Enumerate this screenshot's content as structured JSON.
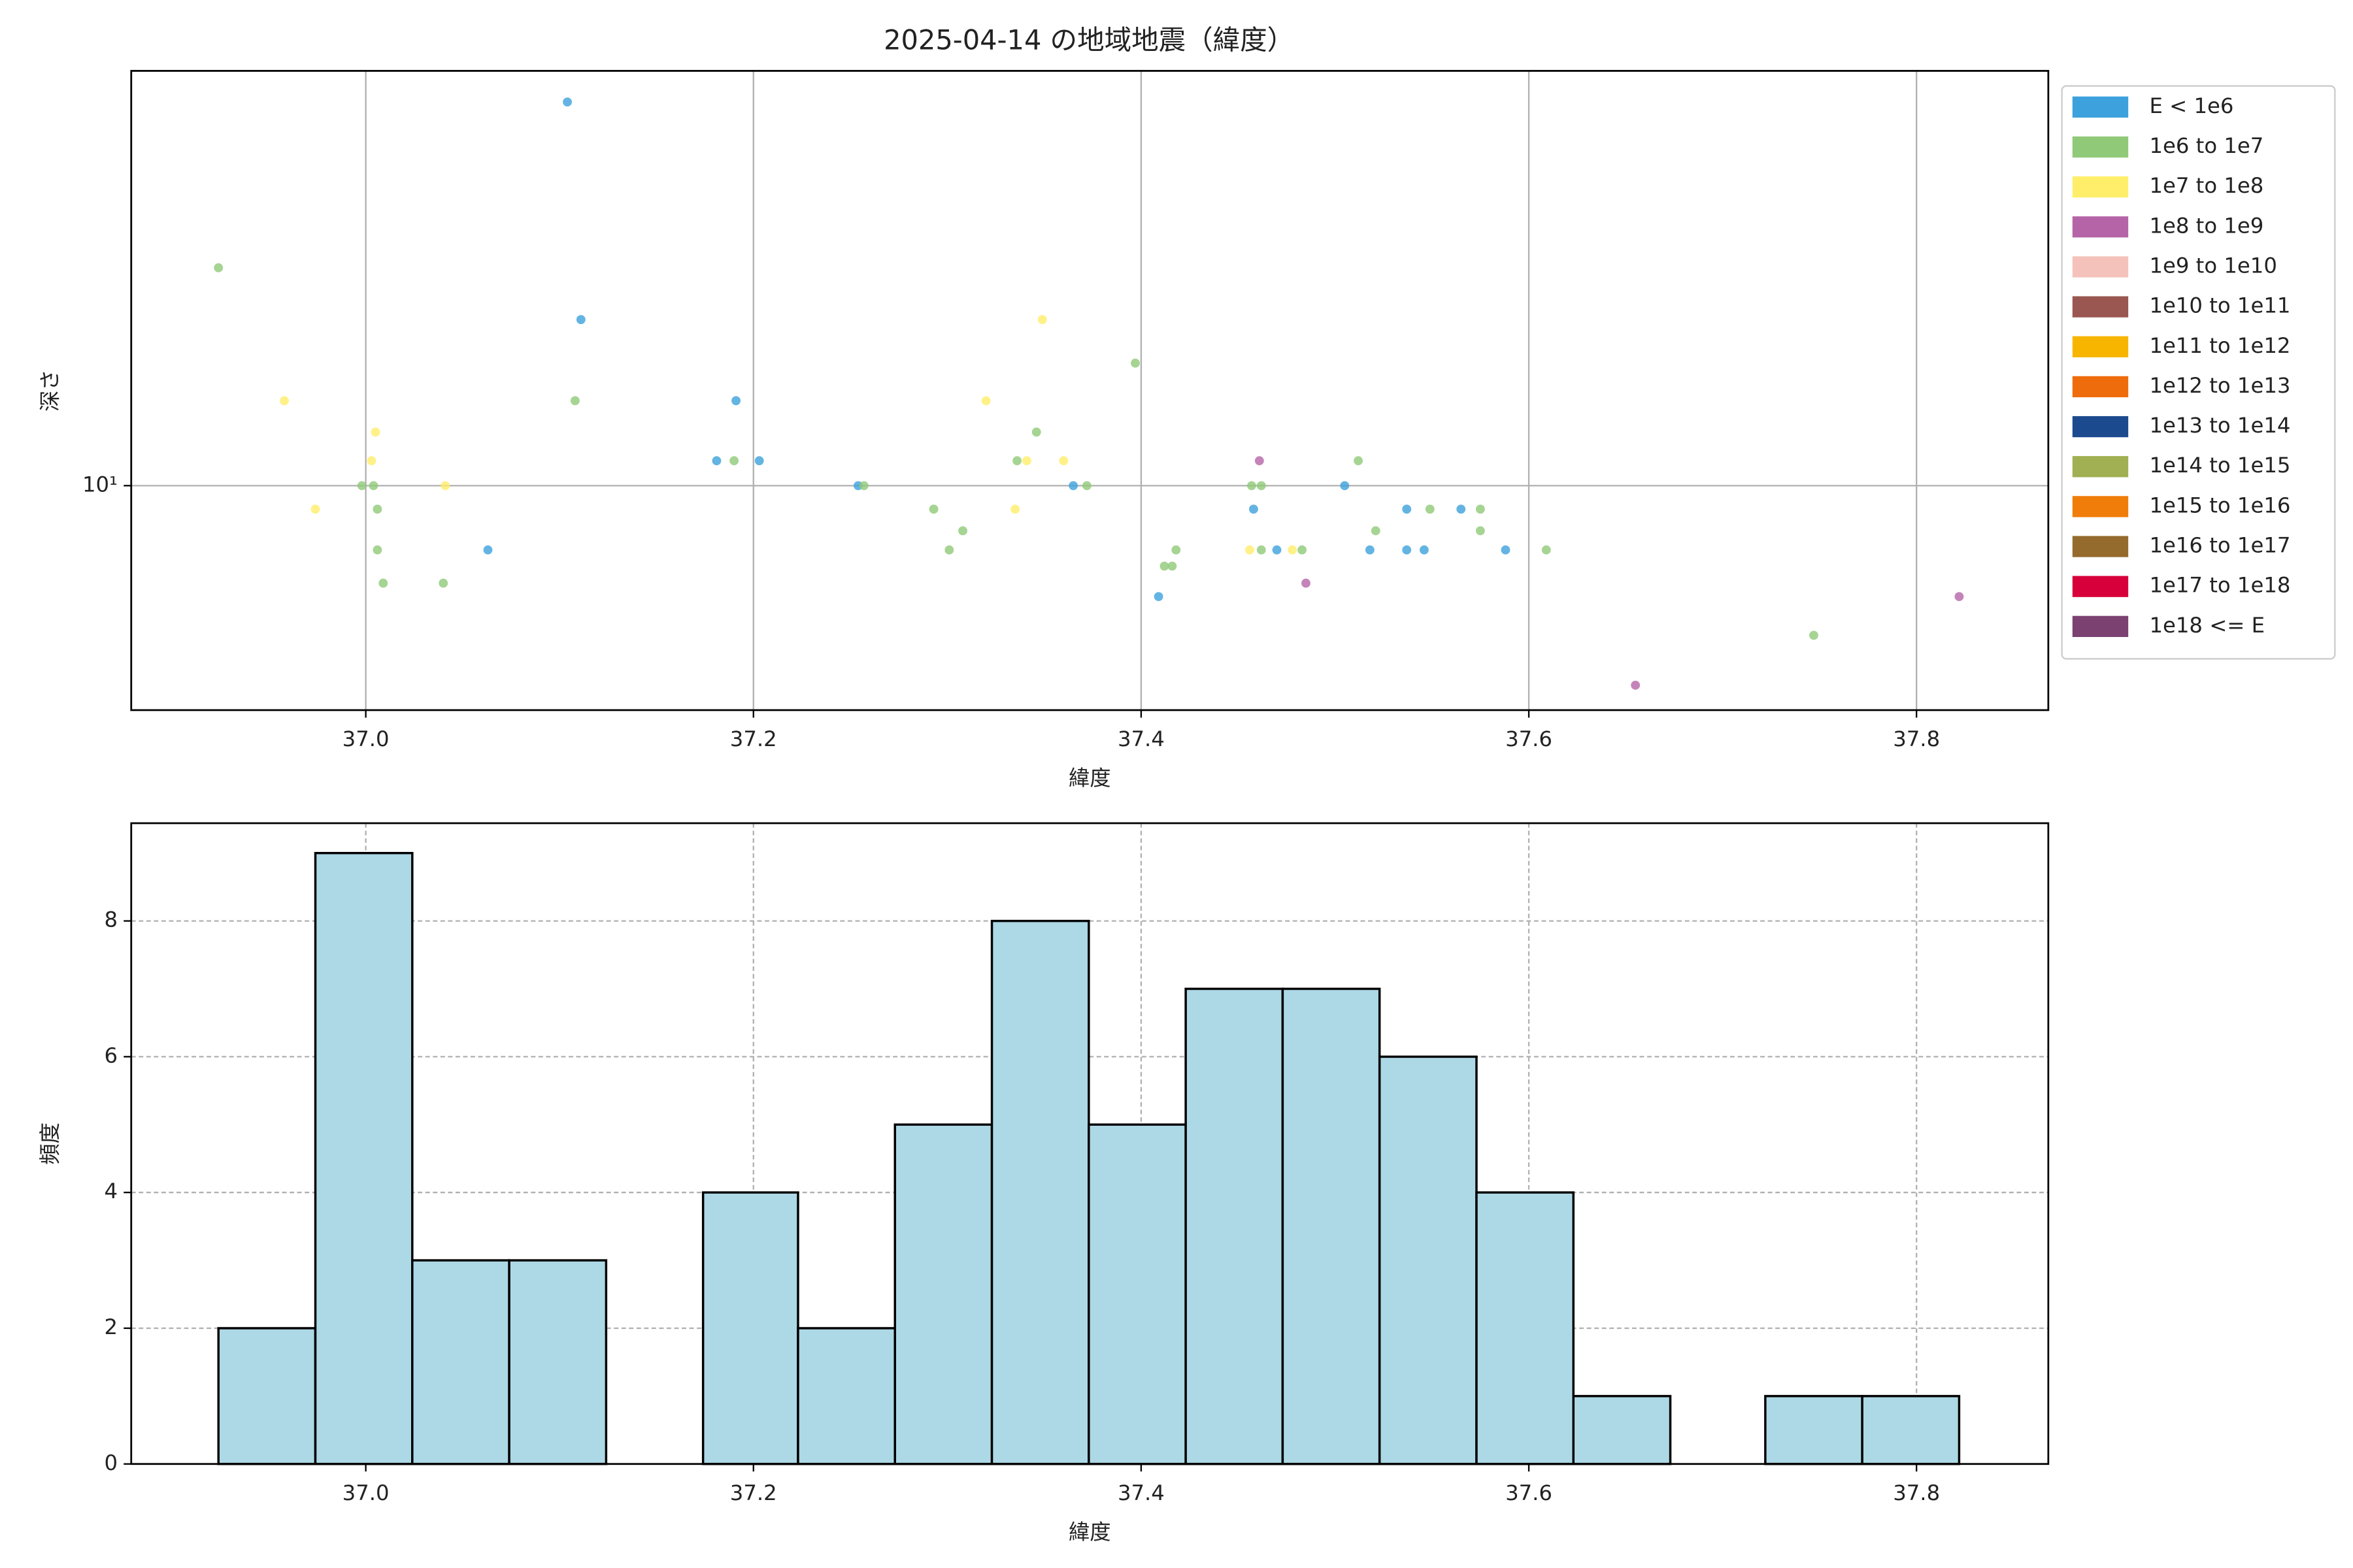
{
  "chart_data": [
    {
      "type": "scatter",
      "title": "2025-04-14 の地域地震（緯度）",
      "x_label": "緯度",
      "y_label": "深さ",
      "xlim": [
        36.879,
        37.868
      ],
      "ylim": [
        5,
        36
      ],
      "ylog": true,
      "grid": true,
      "xticks": [
        {
          "value": 37.0,
          "label": "37.0"
        },
        {
          "value": 37.2,
          "label": "37.2"
        },
        {
          "value": 37.4,
          "label": "37.4"
        },
        {
          "value": 37.6,
          "label": "37.6"
        },
        {
          "value": 37.8,
          "label": "37.8"
        }
      ],
      "yticks": [
        {
          "value": 10,
          "label": "10¹"
        }
      ],
      "legend": "right outside",
      "series": [
        {
          "name": "E < 1e6",
          "color": "#3ca1dc",
          "x": [
            37.104,
            37.111,
            37.191,
            37.181,
            37.203,
            37.254,
            37.365,
            37.063,
            37.458,
            37.505,
            37.537,
            37.565,
            37.518,
            37.537,
            37.546,
            37.588,
            37.47,
            37.409
          ],
          "values": [
            32.7,
            16.7,
            13.0,
            10.8,
            10.8,
            10.0,
            10.0,
            8.2,
            9.3,
            10.0,
            9.3,
            9.3,
            8.2,
            8.2,
            8.2,
            8.2,
            8.2,
            7.1
          ]
        },
        {
          "name": "1e6 to 1e7",
          "color": "#90c978",
          "x": [
            36.924,
            37.108,
            37.397,
            37.346,
            37.19,
            37.336,
            37.512,
            36.998,
            37.004,
            37.257,
            37.372,
            37.457,
            37.462,
            37.006,
            37.293,
            37.549,
            37.575,
            37.308,
            37.521,
            37.575,
            37.006,
            37.301,
            37.418,
            37.462,
            37.483,
            37.609,
            37.412,
            37.416,
            37.009,
            37.04,
            37.747
          ],
          "values": [
            19.6,
            13.0,
            14.6,
            11.8,
            10.8,
            10.8,
            10.8,
            10.0,
            10.0,
            10.0,
            10.0,
            10.0,
            10.0,
            9.3,
            9.3,
            9.3,
            9.3,
            8.7,
            8.7,
            8.7,
            8.2,
            8.2,
            8.2,
            8.2,
            8.2,
            8.2,
            7.8,
            7.8,
            7.4,
            7.4,
            6.3
          ]
        },
        {
          "name": "1e7 to 1e8",
          "color": "#ffee6a",
          "x": [
            36.958,
            37.349,
            37.32,
            37.005,
            37.003,
            37.341,
            37.36,
            36.974,
            37.041,
            37.335,
            37.456,
            37.478
          ],
          "values": [
            13.0,
            16.7,
            13.0,
            11.8,
            10.8,
            10.8,
            10.8,
            9.3,
            10.0,
            9.3,
            8.2,
            8.2
          ]
        },
        {
          "name": "1e8 to 1e9",
          "color": "#b565a7",
          "x": [
            37.461,
            37.485,
            37.822,
            37.655
          ],
          "values": [
            10.8,
            7.4,
            7.1,
            5.4
          ]
        },
        {
          "name": "1e9 to 1e10",
          "color": "#f4c2bb",
          "x": [],
          "values": []
        },
        {
          "name": "1e10 to 1e11",
          "color": "#9a5650",
          "x": [],
          "values": []
        },
        {
          "name": "1e11 to 1e12",
          "color": "#f8b500",
          "x": [],
          "values": []
        },
        {
          "name": "1e12 to 1e13",
          "color": "#ee6c0c",
          "x": [],
          "values": []
        },
        {
          "name": "1e13 to 1e14",
          "color": "#1c4a8e",
          "x": [],
          "values": []
        },
        {
          "name": "1e14 to 1e15",
          "color": "#a0b052",
          "x": [],
          "values": []
        },
        {
          "name": "1e15 to 1e16",
          "color": "#f07d0a",
          "x": [],
          "values": []
        },
        {
          "name": "1e16 to 1e17",
          "color": "#946b2d",
          "x": [],
          "values": []
        },
        {
          "name": "1e17 to 1e18",
          "color": "#d7003a",
          "x": [],
          "values": []
        },
        {
          "name": "1e18 <= E",
          "color": "#7a4171",
          "x": [],
          "values": []
        }
      ]
    },
    {
      "type": "histogram",
      "x_label": "緯度",
      "y_label": "頻度",
      "color": "#add8e6",
      "xlim": [
        36.879,
        37.868
      ],
      "ylim": [
        0,
        9.44
      ],
      "grid": true,
      "xticks": [
        {
          "value": 37.0,
          "label": "37.0"
        },
        {
          "value": 37.2,
          "label": "37.2"
        },
        {
          "value": 37.4,
          "label": "37.4"
        },
        {
          "value": 37.6,
          "label": "37.6"
        },
        {
          "value": 37.8,
          "label": "37.8"
        }
      ],
      "yticks": [
        0,
        2,
        4,
        6,
        8
      ],
      "bins": [
        36.924,
        36.974,
        37.024,
        37.074,
        37.124,
        37.174,
        37.223,
        37.273,
        37.323,
        37.373,
        37.423,
        37.473,
        37.523,
        37.573,
        37.623,
        37.673,
        37.722,
        37.772,
        37.822
      ],
      "values": [
        2,
        9,
        3,
        3,
        0,
        4,
        2,
        5,
        8,
        5,
        7,
        7,
        6,
        4,
        1,
        0,
        1,
        1
      ]
    }
  ]
}
